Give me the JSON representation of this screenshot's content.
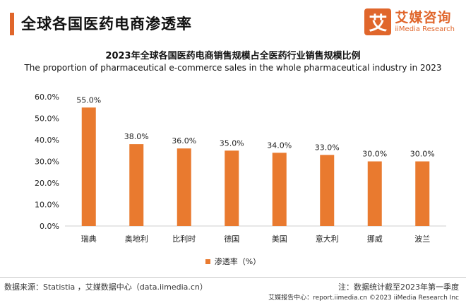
{
  "header": {
    "title": "全球各国医药电商渗透率",
    "logo_mark": "艾",
    "logo_cn": "艾媒咨询",
    "logo_en": "iiMedia Research"
  },
  "chart_data": {
    "type": "bar",
    "title": "2023年全球各国医药电商销售规模占全医药行业销售规模比例",
    "subtitle": "The proportion of pharmaceutical e-commerce sales in the whole pharmaceutical industry in 2023",
    "categories": [
      "瑞典",
      "奥地利",
      "比利时",
      "德国",
      "美国",
      "意大利",
      "挪威",
      "波兰"
    ],
    "series": [
      {
        "name": "渗透率（%）",
        "values": [
          55.0,
          38.0,
          36.0,
          35.0,
          34.0,
          33.0,
          30.0,
          30.0
        ]
      }
    ],
    "ylim": [
      0,
      60
    ],
    "yticks": [
      0,
      10,
      20,
      30,
      40,
      50,
      60
    ],
    "ytick_labels": [
      "0.0%",
      "10.0%",
      "20.0%",
      "30.0%",
      "40.0%",
      "50.0%",
      "60.0%"
    ],
    "data_labels": [
      "55.0%",
      "38.0%",
      "36.0%",
      "35.0%",
      "34.0%",
      "33.0%",
      "30.0%",
      "30.0%"
    ],
    "grid": false,
    "legend_position": "bottom",
    "bar_color": "#e97a2f"
  },
  "footer": {
    "source": "数据来源：Statistia ，艾媒数据中心（data.iimedia.cn）",
    "note": "注：数据统计截至2023年第一季度",
    "copyright": "艾媒报告中心：report.iimedia.cn ©2023  iiMedia Research  Inc"
  }
}
